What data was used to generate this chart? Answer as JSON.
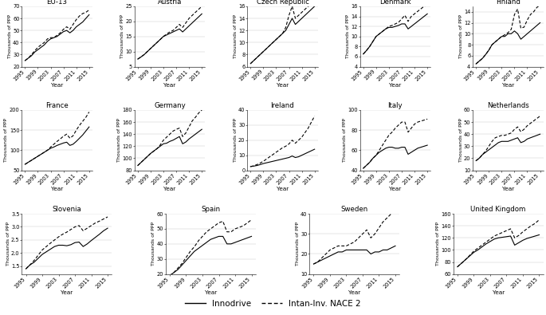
{
  "years": [
    1995,
    1996,
    1997,
    1998,
    1999,
    2000,
    2001,
    2002,
    2003,
    2004,
    2005,
    2006,
    2007,
    2008,
    2009,
    2010,
    2011,
    2012,
    2013,
    2014,
    2015
  ],
  "innodrive": {
    "EU-13": [
      25,
      27,
      29,
      32,
      34,
      36,
      38,
      41,
      43,
      44,
      45,
      47,
      49,
      50,
      48,
      50,
      53,
      55,
      57,
      60,
      63
    ],
    "Austria": [
      7.5,
      8.2,
      9.0,
      10.0,
      11.0,
      12.0,
      13.0,
      14.0,
      15.0,
      15.5,
      16.0,
      16.5,
      17.0,
      17.5,
      16.5,
      17.5,
      18.5,
      19.5,
      20.5,
      21.5,
      22.5
    ],
    "Czech Republic": [
      6.5,
      7.0,
      7.5,
      8.0,
      8.5,
      9.0,
      9.5,
      10.0,
      10.5,
      11.0,
      11.5,
      12.0,
      13.0,
      14.0,
      13.0,
      13.5,
      14.0,
      14.5,
      15.0,
      15.5,
      16.0
    ],
    "Denmark": [
      6.5,
      7.2,
      8.0,
      9.0,
      10.0,
      10.5,
      11.0,
      11.5,
      11.8,
      11.8,
      12.0,
      12.2,
      12.5,
      12.5,
      11.5,
      12.0,
      12.5,
      13.0,
      13.5,
      14.0,
      14.5
    ],
    "Finland": [
      4.5,
      5.0,
      5.5,
      6.2,
      7.0,
      8.0,
      8.5,
      9.0,
      9.5,
      9.5,
      10.0,
      10.0,
      10.5,
      10.0,
      9.0,
      9.5,
      10.0,
      10.5,
      11.0,
      11.5,
      12.0
    ],
    "France": [
      65,
      70,
      75,
      80,
      85,
      90,
      95,
      100,
      105,
      108,
      112,
      115,
      118,
      120,
      112,
      115,
      122,
      130,
      138,
      148,
      158
    ],
    "Germany": [
      88,
      93,
      98,
      103,
      108,
      112,
      116,
      120,
      124,
      125,
      128,
      130,
      133,
      136,
      124,
      127,
      132,
      136,
      140,
      144,
      148
    ],
    "Ireland": [
      2.5,
      2.8,
      3.2,
      3.8,
      4.5,
      5.0,
      5.5,
      6.0,
      6.5,
      7.0,
      7.5,
      8.0,
      8.5,
      9.5,
      8.5,
      9.0,
      10.0,
      11.0,
      12.0,
      13.0,
      14.0
    ],
    "Italy": [
      42,
      45,
      48,
      52,
      55,
      58,
      60,
      62,
      63,
      63,
      62,
      62,
      63,
      63,
      56,
      58,
      60,
      62,
      63,
      64,
      65
    ],
    "Netherlands": [
      18,
      20,
      23,
      25,
      27,
      29,
      31,
      33,
      34,
      34,
      34,
      35,
      36,
      37,
      33,
      34,
      36,
      37,
      38,
      39,
      40
    ],
    "Slovenia": [
      1.4,
      1.55,
      1.65,
      1.8,
      1.95,
      2.05,
      2.15,
      2.25,
      2.3,
      2.3,
      2.28,
      2.32,
      2.4,
      2.42,
      2.25,
      2.35,
      2.48,
      2.6,
      2.72,
      2.85,
      2.95
    ],
    "Spain": [
      19,
      21,
      23,
      26,
      29,
      32,
      35,
      37,
      39,
      41,
      43,
      44,
      45,
      45,
      40,
      40,
      41,
      42,
      43,
      44,
      45
    ],
    "Sweden": [
      15,
      16,
      17,
      18,
      19,
      20,
      21,
      21,
      22,
      22,
      22,
      22,
      22,
      22,
      20,
      21,
      21,
      22,
      22,
      23,
      24
    ],
    "United Kingdom": [
      72,
      78,
      84,
      90,
      96,
      100,
      105,
      110,
      114,
      118,
      120,
      121,
      122,
      123,
      108,
      112,
      116,
      119,
      121,
      123,
      125
    ]
  },
  "nace2": {
    "EU-13": [
      25,
      27,
      30,
      33,
      36,
      38,
      40,
      43,
      44,
      44,
      46,
      48,
      51,
      53,
      51,
      55,
      59,
      62,
      64,
      65,
      67
    ],
    "Austria": [
      7.5,
      8.2,
      9.0,
      10.0,
      11.0,
      12.0,
      13.0,
      14.0,
      15.0,
      15.8,
      16.5,
      17.0,
      18.0,
      19.0,
      18.0,
      19.5,
      21.0,
      22.0,
      23.0,
      24.0,
      25.0
    ],
    "Czech Republic": [
      6.5,
      7.0,
      7.5,
      8.0,
      8.5,
      9.0,
      9.5,
      10.0,
      10.5,
      11.0,
      11.5,
      12.5,
      14.5,
      16.0,
      14.0,
      14.5,
      15.0,
      15.5,
      16.0,
      16.2,
      16.2
    ],
    "Denmark": [
      6.5,
      7.2,
      8.0,
      9.0,
      10.0,
      10.5,
      11.0,
      11.5,
      12.0,
      12.2,
      12.5,
      12.8,
      13.5,
      14.2,
      13.0,
      14.0,
      14.5,
      15.0,
      15.5,
      16.0,
      16.2
    ],
    "Finland": [
      4.5,
      5.0,
      5.5,
      6.2,
      7.0,
      8.0,
      8.5,
      9.0,
      9.5,
      9.8,
      10.2,
      10.8,
      13.5,
      14.5,
      11.0,
      11.2,
      12.5,
      13.5,
      14.0,
      14.8,
      15.2
    ],
    "France": [
      65,
      70,
      75,
      80,
      85,
      90,
      95,
      100,
      108,
      115,
      122,
      128,
      135,
      140,
      130,
      136,
      150,
      162,
      172,
      182,
      195
    ],
    "Germany": [
      88,
      93,
      98,
      103,
      108,
      112,
      116,
      122,
      130,
      135,
      140,
      145,
      148,
      150,
      136,
      142,
      152,
      162,
      168,
      175,
      180
    ],
    "Ireland": [
      2.5,
      3.0,
      3.8,
      4.8,
      6.0,
      7.5,
      9.0,
      10.5,
      12.0,
      13.5,
      15.0,
      16.0,
      17.5,
      20.0,
      18.0,
      20.0,
      22.0,
      25.0,
      28.0,
      32.0,
      36.0
    ],
    "Italy": [
      42,
      45,
      48,
      52,
      55,
      60,
      65,
      70,
      75,
      78,
      82,
      85,
      88,
      88,
      78,
      82,
      86,
      88,
      89,
      90,
      91
    ],
    "Netherlands": [
      18,
      20,
      23,
      26,
      30,
      34,
      37,
      38,
      39,
      39,
      40,
      41,
      44,
      46,
      42,
      44,
      47,
      49,
      51,
      53,
      55
    ],
    "Slovenia": [
      1.4,
      1.55,
      1.72,
      1.92,
      2.12,
      2.25,
      2.38,
      2.5,
      2.62,
      2.72,
      2.8,
      2.9,
      3.0,
      3.05,
      2.85,
      2.95,
      3.05,
      3.15,
      3.22,
      3.3,
      3.38
    ],
    "Spain": [
      19,
      21,
      24,
      27,
      31,
      35,
      38,
      42,
      45,
      48,
      50,
      52,
      54,
      55,
      48,
      48,
      50,
      51,
      52,
      54,
      56
    ],
    "Sweden": [
      15,
      16,
      18,
      20,
      22,
      23,
      24,
      24,
      24,
      25,
      26,
      28,
      30,
      32,
      28,
      30,
      33,
      36,
      38,
      40,
      42
    ],
    "United Kingdom": [
      72,
      78,
      84,
      91,
      98,
      103,
      108,
      113,
      118,
      123,
      126,
      129,
      132,
      135,
      120,
      124,
      130,
      135,
      140,
      144,
      150
    ]
  },
  "ylims": {
    "EU-13": [
      20,
      70
    ],
    "Austria": [
      5,
      25
    ],
    "Czech Republic": [
      6,
      16
    ],
    "Denmark": [
      4,
      16
    ],
    "Finland": [
      4,
      15
    ],
    "France": [
      50,
      200
    ],
    "Germany": [
      80,
      180
    ],
    "Ireland": [
      0,
      40
    ],
    "Italy": [
      40,
      100
    ],
    "Netherlands": [
      10,
      60
    ],
    "Slovenia": [
      1.2,
      3.5
    ],
    "Spain": [
      20,
      60
    ],
    "Sweden": [
      10,
      40
    ],
    "United Kingdom": [
      60,
      160
    ]
  },
  "yticks": {
    "EU-13": [
      20,
      30,
      40,
      50,
      60,
      70
    ],
    "Austria": [
      5,
      10,
      15,
      20,
      25
    ],
    "Czech Republic": [
      6,
      8,
      10,
      12,
      14,
      16
    ],
    "Denmark": [
      4,
      6,
      8,
      10,
      12,
      14,
      16
    ],
    "Finland": [
      4,
      6,
      8,
      10,
      12,
      14
    ],
    "France": [
      50,
      100,
      150,
      200
    ],
    "Germany": [
      80,
      100,
      120,
      140,
      160,
      180
    ],
    "Ireland": [
      0,
      10,
      20,
      30,
      40
    ],
    "Italy": [
      40,
      60,
      80,
      100
    ],
    "Netherlands": [
      10,
      20,
      30,
      40,
      50,
      60
    ],
    "Slovenia": [
      1.5,
      2.0,
      2.5,
      3.0,
      3.5
    ],
    "Spain": [
      20,
      30,
      40,
      50,
      60
    ],
    "Sweden": [
      10,
      20,
      30,
      40
    ],
    "United Kingdom": [
      60,
      80,
      100,
      120,
      140,
      160
    ]
  },
  "innodrive_color": "black",
  "nace2_color": "black",
  "ylabel": "Thousands of PPP",
  "xlabel": "Year",
  "xticks": [
    1995,
    1999,
    2003,
    2007,
    2011,
    2015
  ]
}
